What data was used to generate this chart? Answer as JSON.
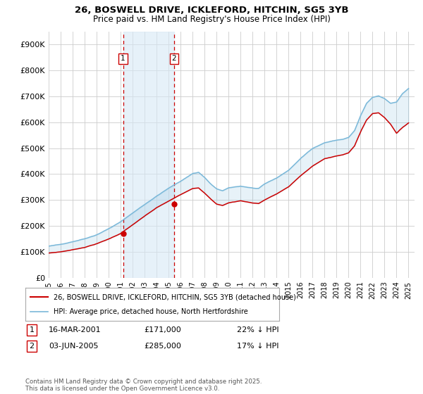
{
  "title1": "26, BOSWELL DRIVE, ICKLEFORD, HITCHIN, SG5 3YB",
  "title2": "Price paid vs. HM Land Registry's House Price Index (HPI)",
  "legend_line1": "26, BOSWELL DRIVE, ICKLEFORD, HITCHIN, SG5 3YB (detached house)",
  "legend_line2": "HPI: Average price, detached house, North Hertfordshire",
  "transaction1_date": "16-MAR-2001",
  "transaction1_price": "£171,000",
  "transaction1_hpi": "22% ↓ HPI",
  "transaction1_year": 2001.2,
  "transaction1_value": 171000,
  "transaction2_date": "03-JUN-2005",
  "transaction2_price": "£285,000",
  "transaction2_hpi": "17% ↓ HPI",
  "transaction2_year": 2005.45,
  "transaction2_value": 285000,
  "footer": "Contains HM Land Registry data © Crown copyright and database right 2025.\nThis data is licensed under the Open Government Licence v3.0.",
  "hpi_color": "#7ab8d9",
  "price_color": "#cc0000",
  "vline_color": "#cc0000",
  "shade_color": "#d6e8f5",
  "background_color": "#ffffff",
  "grid_color": "#cccccc",
  "ylim": [
    0,
    950000
  ],
  "yticks": [
    0,
    100000,
    200000,
    300000,
    400000,
    500000,
    600000,
    700000,
    800000,
    900000
  ],
  "xlim_start": 1995.0,
  "xlim_end": 2025.5
}
